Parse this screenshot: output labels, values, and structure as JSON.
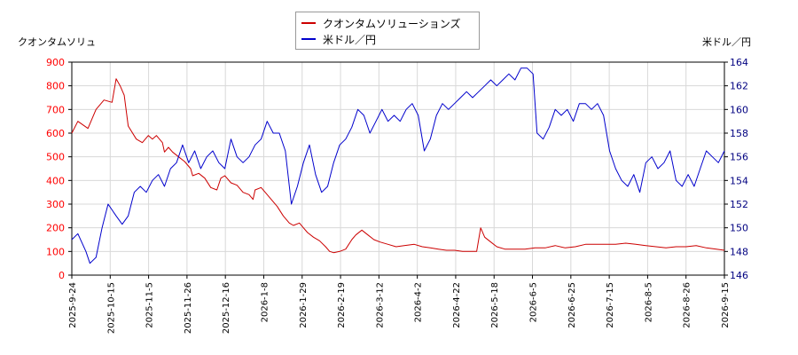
{
  "chart_data": {
    "type": "line",
    "legend_placement": "top-center",
    "grid": true,
    "left_axis": {
      "label": "クオンタムソリュ",
      "ylim": [
        0,
        900
      ],
      "ticks": [
        0,
        100,
        200,
        300,
        400,
        500,
        600,
        700,
        800,
        900
      ],
      "color": "#ff0000"
    },
    "right_axis": {
      "label": "米ドル／円",
      "ylim": [
        146,
        164
      ],
      "ticks": [
        146,
        148,
        150,
        152,
        154,
        156,
        158,
        160,
        162,
        164
      ],
      "color": "#0000ff"
    },
    "x_ticks": [
      "2025-9-24",
      "2025-10-15",
      "2025-11-5",
      "2025-11-26",
      "2025-12-16",
      "2026-1-8",
      "2026-1-29",
      "2026-2-19",
      "2026-3-12",
      "2026-4-2",
      "2026-4-22",
      "2026-5-18",
      "2026-6-5",
      "2026-6-25",
      "2026-7-15",
      "2026-8-5",
      "2026-8-26",
      "2026-9-15"
    ],
    "series": [
      {
        "name": "クオンタムソリューションズ",
        "color": "#cc0000",
        "axis": "left",
        "points": [
          [
            0,
            600
          ],
          [
            0.3,
            650
          ],
          [
            0.8,
            620
          ],
          [
            1.2,
            700
          ],
          [
            1.6,
            740
          ],
          [
            2.0,
            730
          ],
          [
            2.2,
            830
          ],
          [
            2.4,
            800
          ],
          [
            2.6,
            760
          ],
          [
            2.8,
            630
          ],
          [
            3.2,
            575
          ],
          [
            3.5,
            560
          ],
          [
            3.8,
            590
          ],
          [
            4.0,
            575
          ],
          [
            4.2,
            590
          ],
          [
            4.5,
            560
          ],
          [
            4.6,
            520
          ],
          [
            4.8,
            540
          ],
          [
            5.0,
            520
          ],
          [
            5.3,
            500
          ],
          [
            5.6,
            480
          ],
          [
            5.9,
            450
          ],
          [
            6.0,
            420
          ],
          [
            6.3,
            430
          ],
          [
            6.6,
            410
          ],
          [
            6.9,
            370
          ],
          [
            7.2,
            360
          ],
          [
            7.4,
            410
          ],
          [
            7.6,
            420
          ],
          [
            7.9,
            390
          ],
          [
            8.2,
            380
          ],
          [
            8.5,
            350
          ],
          [
            8.8,
            340
          ],
          [
            9.0,
            320
          ],
          [
            9.1,
            360
          ],
          [
            9.4,
            370
          ],
          [
            9.6,
            350
          ],
          [
            9.9,
            320
          ],
          [
            10.2,
            290
          ],
          [
            10.5,
            250
          ],
          [
            10.8,
            220
          ],
          [
            11.0,
            210
          ],
          [
            11.3,
            220
          ],
          [
            11.5,
            200
          ],
          [
            11.7,
            180
          ],
          [
            12.0,
            160
          ],
          [
            12.3,
            145
          ],
          [
            12.6,
            120
          ],
          [
            12.8,
            100
          ],
          [
            13.0,
            95
          ],
          [
            13.3,
            100
          ],
          [
            13.6,
            110
          ],
          [
            13.9,
            150
          ],
          [
            14.1,
            170
          ],
          [
            14.4,
            190
          ],
          [
            14.7,
            170
          ],
          [
            15.0,
            150
          ],
          [
            15.3,
            140
          ],
          [
            15.7,
            130
          ],
          [
            16.1,
            120
          ],
          [
            16.5,
            125
          ],
          [
            17.0,
            130
          ],
          [
            17.4,
            120
          ],
          [
            17.8,
            115
          ],
          [
            18.2,
            110
          ],
          [
            18.6,
            105
          ],
          [
            19.0,
            105
          ],
          [
            19.4,
            100
          ],
          [
            19.8,
            100
          ],
          [
            20.1,
            100
          ],
          [
            20.3,
            200
          ],
          [
            20.5,
            160
          ],
          [
            20.8,
            140
          ],
          [
            21.1,
            120
          ],
          [
            21.5,
            110
          ],
          [
            22.0,
            110
          ],
          [
            22.5,
            110
          ],
          [
            23.0,
            115
          ],
          [
            23.5,
            115
          ],
          [
            24.0,
            125
          ],
          [
            24.5,
            115
          ],
          [
            25.0,
            120
          ],
          [
            25.5,
            130
          ],
          [
            26.0,
            130
          ],
          [
            26.5,
            130
          ],
          [
            27.0,
            130
          ],
          [
            27.5,
            135
          ],
          [
            28.0,
            130
          ],
          [
            28.5,
            125
          ],
          [
            29.0,
            120
          ],
          [
            29.5,
            115
          ],
          [
            30.0,
            120
          ],
          [
            30.5,
            120
          ],
          [
            31.0,
            125
          ],
          [
            31.5,
            115
          ],
          [
            32.0,
            110
          ],
          [
            32.4,
            105
          ]
        ]
      },
      {
        "name": "米ドル／円",
        "color": "#0000cc",
        "axis": "right",
        "points": [
          [
            0,
            149.0
          ],
          [
            0.3,
            149.5
          ],
          [
            0.7,
            148.0
          ],
          [
            0.9,
            147.0
          ],
          [
            1.2,
            147.5
          ],
          [
            1.5,
            150.0
          ],
          [
            1.8,
            152.0
          ],
          [
            2.2,
            151.0
          ],
          [
            2.5,
            150.3
          ],
          [
            2.8,
            151.0
          ],
          [
            3.1,
            153.0
          ],
          [
            3.4,
            153.5
          ],
          [
            3.7,
            153.0
          ],
          [
            4.0,
            154.0
          ],
          [
            4.3,
            154.5
          ],
          [
            4.6,
            153.5
          ],
          [
            4.9,
            155.0
          ],
          [
            5.2,
            155.5
          ],
          [
            5.5,
            157.0
          ],
          [
            5.8,
            155.5
          ],
          [
            6.1,
            156.5
          ],
          [
            6.4,
            155.0
          ],
          [
            6.7,
            156.0
          ],
          [
            7.0,
            156.5
          ],
          [
            7.3,
            155.5
          ],
          [
            7.6,
            155.0
          ],
          [
            7.9,
            157.5
          ],
          [
            8.2,
            156.0
          ],
          [
            8.5,
            155.5
          ],
          [
            8.8,
            156.0
          ],
          [
            9.1,
            157.0
          ],
          [
            9.4,
            157.5
          ],
          [
            9.7,
            159.0
          ],
          [
            10.0,
            158.0
          ],
          [
            10.3,
            158.0
          ],
          [
            10.6,
            156.5
          ],
          [
            10.9,
            152.0
          ],
          [
            11.2,
            153.5
          ],
          [
            11.5,
            155.5
          ],
          [
            11.8,
            157.0
          ],
          [
            12.1,
            154.5
          ],
          [
            12.4,
            153.0
          ],
          [
            12.7,
            153.5
          ],
          [
            13.0,
            155.5
          ],
          [
            13.3,
            157.0
          ],
          [
            13.6,
            157.5
          ],
          [
            13.9,
            158.5
          ],
          [
            14.2,
            160.0
          ],
          [
            14.5,
            159.5
          ],
          [
            14.8,
            158.0
          ],
          [
            15.1,
            159.0
          ],
          [
            15.4,
            160.0
          ],
          [
            15.7,
            159.0
          ],
          [
            16.0,
            159.5
          ],
          [
            16.3,
            159.0
          ],
          [
            16.6,
            160.0
          ],
          [
            16.9,
            160.5
          ],
          [
            17.2,
            159.5
          ],
          [
            17.5,
            156.5
          ],
          [
            17.8,
            157.5
          ],
          [
            18.1,
            159.5
          ],
          [
            18.4,
            160.5
          ],
          [
            18.7,
            160.0
          ],
          [
            19.0,
            160.5
          ],
          [
            19.3,
            161.0
          ],
          [
            19.6,
            161.5
          ],
          [
            19.9,
            161.0
          ],
          [
            20.2,
            161.5
          ],
          [
            20.5,
            162.0
          ],
          [
            20.8,
            162.5
          ],
          [
            21.1,
            162.0
          ],
          [
            21.4,
            162.5
          ],
          [
            21.7,
            163.0
          ],
          [
            22.0,
            162.5
          ],
          [
            22.3,
            163.5
          ],
          [
            22.6,
            163.5
          ],
          [
            22.9,
            163.0
          ],
          [
            23.1,
            158.0
          ],
          [
            23.4,
            157.5
          ],
          [
            23.7,
            158.5
          ],
          [
            24.0,
            160.0
          ],
          [
            24.3,
            159.5
          ],
          [
            24.6,
            160.0
          ],
          [
            24.9,
            159.0
          ],
          [
            25.2,
            160.5
          ],
          [
            25.5,
            160.5
          ],
          [
            25.8,
            160.0
          ],
          [
            26.1,
            160.5
          ],
          [
            26.4,
            159.5
          ],
          [
            26.7,
            156.5
          ],
          [
            27.0,
            155.0
          ],
          [
            27.3,
            154.0
          ],
          [
            27.6,
            153.5
          ],
          [
            27.9,
            154.5
          ],
          [
            28.2,
            153.0
          ],
          [
            28.5,
            155.5
          ],
          [
            28.8,
            156.0
          ],
          [
            29.1,
            155.0
          ],
          [
            29.4,
            155.5
          ],
          [
            29.7,
            156.5
          ],
          [
            30.0,
            154.0
          ],
          [
            30.3,
            153.5
          ],
          [
            30.6,
            154.5
          ],
          [
            30.9,
            153.5
          ],
          [
            31.2,
            155.0
          ],
          [
            31.5,
            156.5
          ],
          [
            31.8,
            156.0
          ],
          [
            32.1,
            155.5
          ],
          [
            32.4,
            156.5
          ]
        ]
      }
    ],
    "x_max": 32.4
  }
}
